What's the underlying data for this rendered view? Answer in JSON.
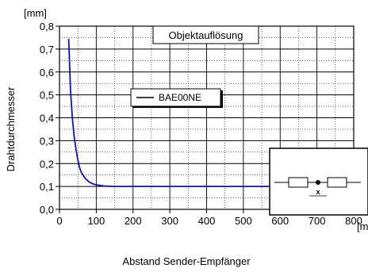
{
  "chart_data": {
    "type": "line",
    "title": "Objektauflösung",
    "xlabel": "Abstand Sender-Empfänger",
    "ylabel": "Drahtdurchmesser",
    "x_unit": "[mm]",
    "y_unit": "[mm]",
    "xlim": [
      0,
      800
    ],
    "ylim": [
      0,
      0.8
    ],
    "x_ticks": [
      "0",
      "100",
      "200",
      "300",
      "400",
      "500",
      "600",
      "700",
      "800"
    ],
    "y_ticks": [
      "0,0",
      "0,1",
      "0,2",
      "0,3",
      "0,4",
      "0,5",
      "0,6",
      "0,7",
      "0,8"
    ],
    "grid": true,
    "legend_position": "center-left",
    "series": [
      {
        "name": "BAE00NE",
        "color": "#1010cc",
        "x": [
          25,
          30,
          35,
          40,
          45,
          50,
          55,
          60,
          70,
          80,
          90,
          100,
          120,
          150,
          200,
          300,
          400,
          500,
          600,
          700,
          800
        ],
        "y": [
          0.745,
          0.52,
          0.4,
          0.32,
          0.26,
          0.215,
          0.18,
          0.16,
          0.135,
          0.12,
          0.112,
          0.107,
          0.102,
          0.1,
          0.1,
          0.1,
          0.1,
          0.1,
          0.1,
          0.1,
          0.1
        ]
      }
    ]
  }
}
